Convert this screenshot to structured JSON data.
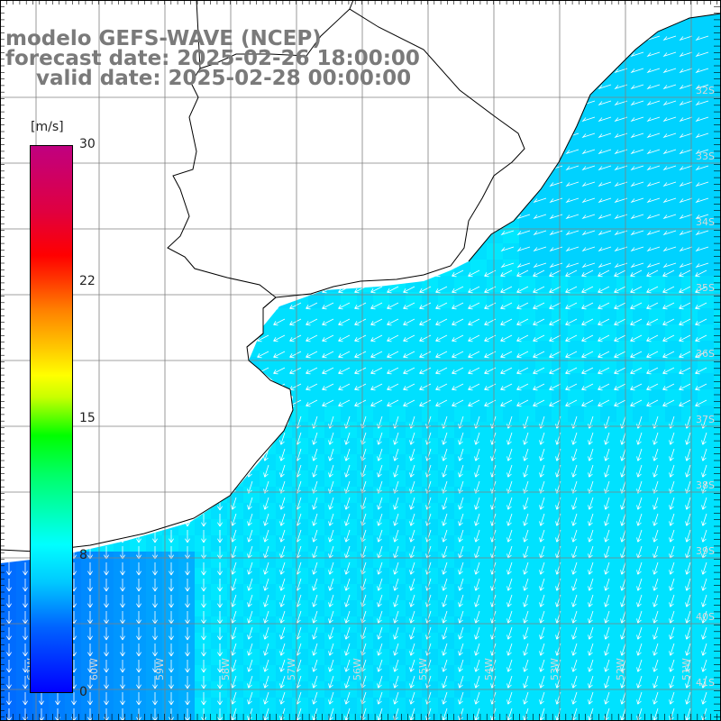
{
  "titles": {
    "line1": "modelo GEFS-WAVE (NCEP)",
    "line2": "forecast date: 2025-02-26 18:00:00",
    "line3": "valid date: 2025-02-28 00:00:00"
  },
  "colorbar": {
    "unit": "[m/s]",
    "ticks": [
      "30",
      "22",
      "15",
      "8",
      "0"
    ],
    "min": 0,
    "max": 30,
    "colors": [
      "#0000ff",
      "#00c8ff",
      "#00ffff",
      "#00ff00",
      "#ffff00",
      "#ff8000",
      "#ff0000",
      "#c00080"
    ]
  },
  "map": {
    "longitudes": [
      "61W",
      "60W",
      "59W",
      "58W",
      "57W",
      "56W",
      "55W",
      "54W",
      "53W",
      "52W",
      "51W"
    ],
    "latitudes": [
      "32S",
      "33S",
      "34S",
      "35S",
      "36S",
      "37S",
      "38S",
      "39S",
      "40S",
      "41S"
    ],
    "lon_range": [
      -61.5,
      -50.5
    ],
    "lat_range": [
      -31.5,
      -41.5
    ],
    "land_color": "#ffffff",
    "grid_color": "#808080",
    "arrow_color": "#ffffff"
  }
}
